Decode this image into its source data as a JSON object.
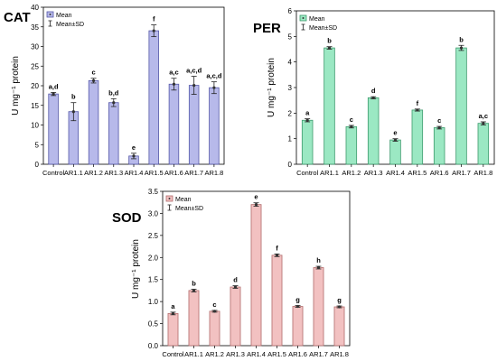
{
  "chart_data": [
    {
      "type": "bar",
      "title": "CAT",
      "ylabel": "U mg⁻¹ protein",
      "ylim": [
        0,
        40
      ],
      "yticks": [
        0,
        5,
        10,
        15,
        20,
        25,
        30,
        35,
        40
      ],
      "categories": [
        "Control",
        "AR1.1",
        "AR1.2",
        "AR1.3",
        "AR1.4",
        "AR1.5",
        "AR1.6",
        "AR1.7",
        "AR1.8"
      ],
      "values": [
        17.9,
        13.4,
        21.3,
        15.7,
        2.1,
        34.0,
        20.4,
        20.1,
        19.5
      ],
      "errors": [
        0.4,
        2.3,
        0.6,
        1.0,
        0.7,
        1.5,
        1.5,
        2.3,
        1.5
      ],
      "labels": [
        "a,d",
        "b",
        "c",
        "b,d",
        "e",
        "f",
        "a,c",
        "a,c,d",
        "a,c,d"
      ],
      "legend": [
        "Mean",
        "Mean±SD"
      ],
      "color": "#b7b9ea",
      "edge": "#5558a8"
    },
    {
      "type": "bar",
      "title": "PER",
      "ylabel": "U mg⁻¹ protein",
      "ylim": [
        0,
        6
      ],
      "yticks": [
        0,
        1,
        2,
        3,
        4,
        5,
        6
      ],
      "categories": [
        "Control",
        "AR1.1",
        "AR1.2",
        "AR1.3",
        "AR1.4",
        "AR1.5",
        "AR1.6",
        "AR1.7",
        "AR1.8"
      ],
      "values": [
        1.72,
        4.55,
        1.47,
        2.6,
        0.95,
        2.12,
        1.43,
        4.55,
        1.6
      ],
      "errors": [
        0.06,
        0.05,
        0.05,
        0.04,
        0.05,
        0.04,
        0.05,
        0.1,
        0.06
      ],
      "labels": [
        "a",
        "b",
        "c",
        "d",
        "e",
        "f",
        "c",
        "b",
        "a,c"
      ],
      "legend": [
        "Mean",
        "Mean±SD"
      ],
      "color": "#9be8c3",
      "edge": "#3c9a6c"
    },
    {
      "type": "bar",
      "title": "SOD",
      "ylabel": "U mg⁻¹ protein",
      "ylim": [
        0,
        3.5
      ],
      "yticks": [
        0.0,
        0.5,
        1.0,
        1.5,
        2.0,
        2.5,
        3.0,
        3.5
      ],
      "yticklabels": [
        "0.0",
        "0.5",
        "1.0",
        "1.5",
        "2.0",
        "2.5",
        "3.0",
        "3.5"
      ],
      "categories": [
        "Control",
        "AR1.1",
        "AR1.2",
        "AR1.3",
        "AR1.4",
        "AR1.5",
        "AR1.6",
        "AR1.7",
        "AR1.8"
      ],
      "values": [
        0.73,
        1.25,
        0.78,
        1.33,
        3.2,
        2.05,
        0.89,
        1.77,
        0.88
      ],
      "errors": [
        0.03,
        0.03,
        0.02,
        0.03,
        0.04,
        0.03,
        0.02,
        0.03,
        0.02
      ],
      "labels": [
        "a",
        "b",
        "c",
        "d",
        "e",
        "f",
        "g",
        "h",
        "g"
      ],
      "legend": [
        "Mean",
        "Mean±SD"
      ],
      "color": "#f2c1c1",
      "edge": "#b06b6b"
    }
  ]
}
